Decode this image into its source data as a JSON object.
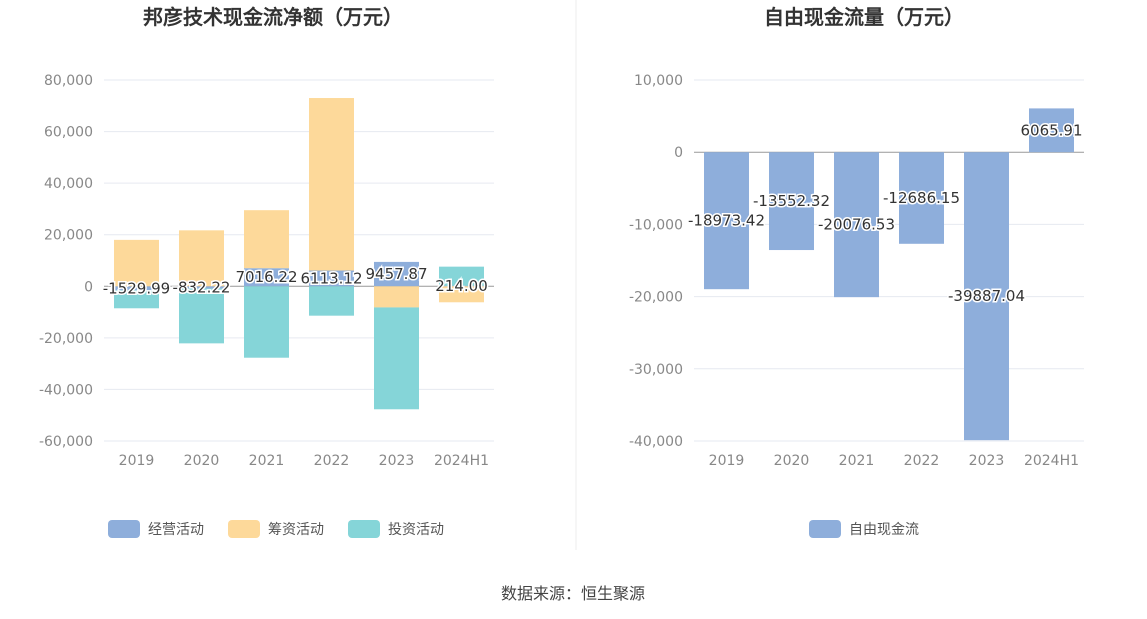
{
  "source_text": "数据来源：恒生聚源",
  "chart_data": [
    {
      "type": "bar",
      "stacked": true,
      "title": "邦彦技术现金流净额（万元）",
      "categories": [
        "2019",
        "2020",
        "2021",
        "2022",
        "2023",
        "2024H1"
      ],
      "ylim": [
        -60000,
        80000
      ],
      "yticks": [
        80000,
        60000,
        40000,
        20000,
        0,
        -20000,
        -40000,
        -60000
      ],
      "ytick_labels": [
        "80,000",
        "60,000",
        "40,000",
        "20,000",
        "0",
        "-20,000",
        "-40,000",
        "-60,000"
      ],
      "grid": true,
      "legend_position": "bottom",
      "series": [
        {
          "name": "经营活动",
          "color": "#8eaedb",
          "values": [
            -1529.99,
            -832.22,
            7016.22,
            6113.12,
            9457.87,
            214.0
          ]
        },
        {
          "name": "筹资活动",
          "color": "#fdd99a",
          "values": [
            18000,
            21700,
            22500,
            66900,
            -8200,
            -6200
          ]
        },
        {
          "name": "投资活动",
          "color": "#85d5d8",
          "values": [
            -7000,
            -21300,
            -27700,
            -11400,
            -39500,
            7400
          ]
        }
      ],
      "data_labels": [
        "-1529.99",
        "-832.22",
        "7016.22",
        "6113.12",
        "9457.87",
        "214.00"
      ]
    },
    {
      "type": "bar",
      "title": "自由现金流量（万元）",
      "categories": [
        "2019",
        "2020",
        "2021",
        "2022",
        "2023",
        "2024H1"
      ],
      "ylim": [
        -40000,
        10000
      ],
      "yticks": [
        10000,
        0,
        -10000,
        -20000,
        -30000,
        -40000
      ],
      "ytick_labels": [
        "10,000",
        "0",
        "-10,000",
        "-20,000",
        "-30,000",
        "-40,000"
      ],
      "grid": true,
      "legend_position": "bottom",
      "series": [
        {
          "name": "自由现金流",
          "color": "#8eaedb",
          "values": [
            -18973.42,
            -13552.32,
            -20076.53,
            -12686.15,
            -39887.04,
            6065.91
          ]
        }
      ],
      "data_labels": [
        "-18973.42",
        "-13552.32",
        "-20076.53",
        "-12686.15",
        "-39887.04",
        "6065.91"
      ]
    }
  ]
}
